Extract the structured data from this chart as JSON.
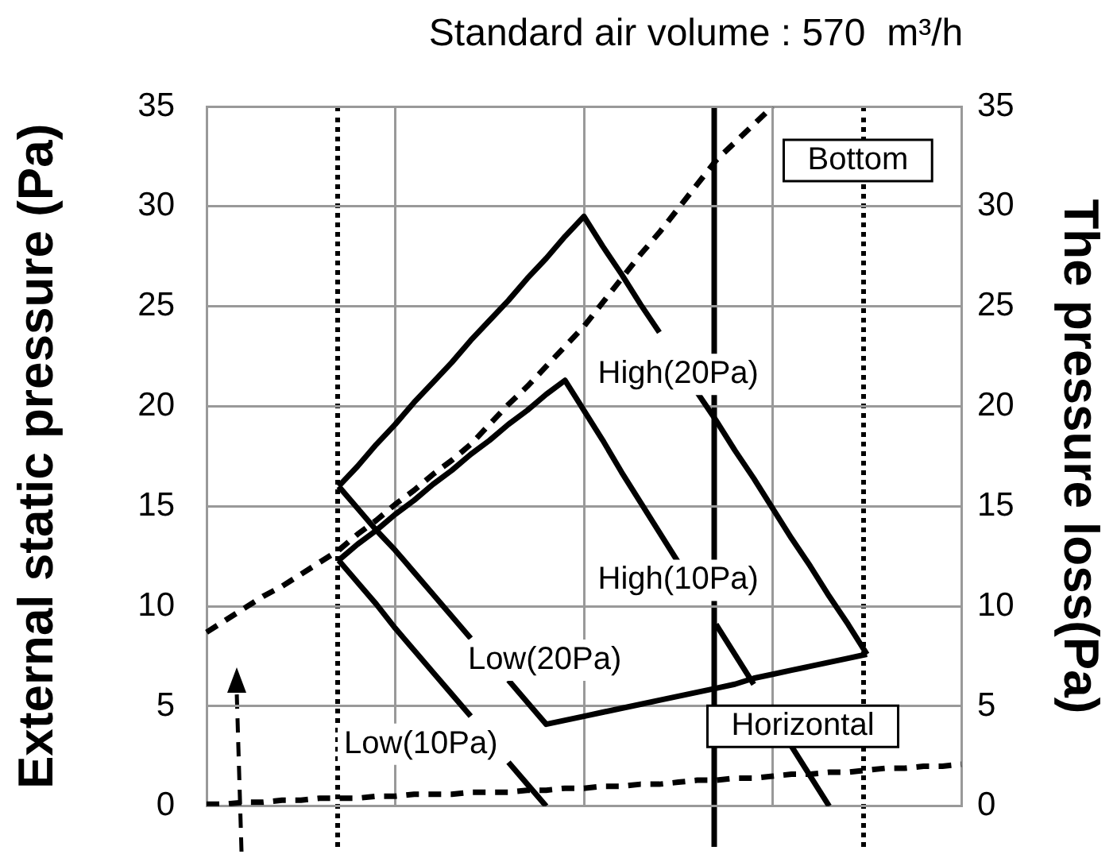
{
  "chart_data": {
    "type": "line",
    "title": "Standard air volume : 570  m³/h",
    "ylabel": "External static pressure (Pa)",
    "y2label": "The pressure loss(Pa)",
    "categories": [
      null,
      null,
      null,
      null,
      null,
      null,
      null,
      null,
      null,
      null,
      null,
      null,
      null,
      null,
      null,
      null,
      null,
      null,
      null,
      null,
      null,
      null,
      null,
      null,
      null,
      null,
      null,
      null,
      null,
      null,
      null,
      null,
      null,
      null,
      null,
      null,
      null,
      null,
      null,
      null,
      null
    ],
    "ylim": [
      0,
      35
    ],
    "yticks": [
      0,
      5,
      10,
      15,
      20,
      25,
      30,
      35
    ],
    "y2lim": [
      0,
      35
    ],
    "y2ticks": [
      0,
      5,
      10,
      15,
      20,
      25,
      30,
      35
    ],
    "grid": true,
    "legend": false,
    "marker": "none",
    "series": [
      {
        "color": "#000000",
        "line_style": "solid",
        "values": [
          null,
          null,
          null,
          null,
          null,
          null,
          null,
          16.0,
          17.0,
          18.1,
          19.1,
          20.2,
          21.2,
          22.2,
          23.3,
          24.3,
          25.3,
          26.4,
          27.4,
          28.5,
          29.5,
          28.0,
          26.6,
          25.1,
          23.7,
          null,
          20.7,
          19.3,
          17.8,
          16.4,
          14.9,
          13.4,
          12.0,
          10.5,
          9.1,
          7.6,
          null,
          null,
          null,
          null,
          null
        ]
      },
      {
        "color": "#000000",
        "line_style": "solid",
        "values": [
          null,
          null,
          null,
          null,
          null,
          null,
          null,
          16.0,
          14.9,
          13.8,
          12.8,
          11.7,
          10.6,
          9.5,
          8.4,
          null,
          6.3,
          5.2,
          4.1,
          4.3,
          4.5,
          4.7,
          4.9,
          5.1,
          5.3,
          5.5,
          5.7,
          5.9,
          6.1,
          6.4,
          6.6,
          6.8,
          7.0,
          7.2,
          7.4,
          7.6,
          null,
          null,
          null,
          null,
          null
        ]
      },
      {
        "color": "#000000",
        "line_style": "solid",
        "values": [
          null,
          null,
          null,
          null,
          null,
          null,
          null,
          12.3,
          13.1,
          13.8,
          14.6,
          15.3,
          16.1,
          16.8,
          17.6,
          18.3,
          19.1,
          19.8,
          20.6,
          21.3,
          19.8,
          18.3,
          16.7,
          15.2,
          13.7,
          12.2,
          null,
          9.1,
          7.6,
          6.1,
          null,
          3.0,
          1.5,
          0,
          null,
          null,
          null,
          null,
          null,
          null,
          null
        ]
      },
      {
        "color": "#000000",
        "line_style": "solid",
        "values": [
          null,
          null,
          null,
          null,
          null,
          null,
          null,
          12.3,
          11.2,
          10.1,
          8.9,
          7.8,
          6.7,
          5.6,
          4.5,
          null,
          2.2,
          1.1,
          0,
          null,
          null,
          null,
          null,
          null,
          null,
          null,
          null,
          null,
          null,
          null,
          null,
          null,
          null,
          null,
          null,
          null,
          null,
          null,
          null,
          null,
          null
        ]
      },
      {
        "color": "#000000",
        "line_style": "dashed",
        "values": [
          8.7,
          9.3,
          9.9,
          10.5,
          11.0,
          11.6,
          12.2,
          12.8,
          13.6,
          14.3,
          15.1,
          15.8,
          16.6,
          17.3,
          18.1,
          19.1,
          20.1,
          21.0,
          22.0,
          23.0,
          24.0,
          25.2,
          26.4,
          27.6,
          28.7,
          29.9,
          31.1,
          32.3,
          33.2,
          34.1,
          35.0,
          null,
          null,
          null,
          null,
          null,
          null,
          null,
          null,
          null,
          null
        ]
      },
      {
        "color": "#000000",
        "line_style": "dashed",
        "values": [
          0.1,
          0.1,
          0.2,
          0.2,
          0.3,
          0.3,
          0.4,
          0.4,
          0.4,
          0.5,
          0.5,
          0.6,
          0.6,
          0.6,
          0.7,
          0.7,
          0.7,
          0.8,
          0.8,
          0.9,
          0.9,
          1.0,
          1.0,
          1.1,
          1.1,
          1.2,
          1.3,
          1.3,
          1.4,
          1.4,
          1.5,
          1.6,
          1.6,
          1.7,
          1.7,
          1.8,
          1.9,
          1.9,
          2.0,
          2.0,
          2.1
        ]
      }
    ],
    "annotations": [
      "Bottom",
      "High(20Pa)",
      "High(10Pa)",
      "Low(20Pa)",
      "Low(10Pa)",
      "Horizontal"
    ]
  }
}
